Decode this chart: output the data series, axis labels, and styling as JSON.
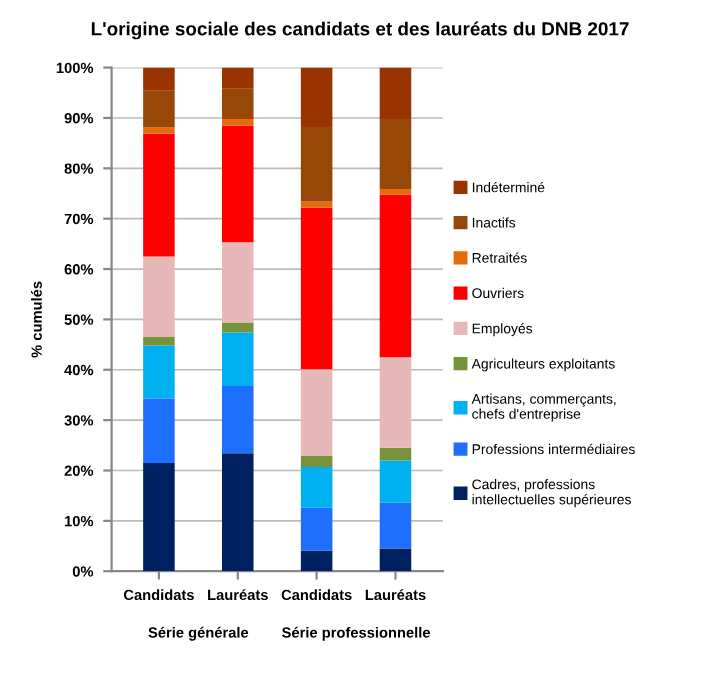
{
  "chart_data": {
    "type": "bar",
    "stacked": true,
    "title": "L'origine sociale des candidats et des lauréats du DNB 2017",
    "ylabel": "% cumulés",
    "categories": [
      "Candidats",
      "Lauréats",
      "Candidats",
      "Lauréats"
    ],
    "annotations": [
      "Série générale",
      "Série professionnelle"
    ],
    "series": [
      {
        "name": "Cadres, professions\nintellectuelles supérieures",
        "color": "#002060",
        "values": [
          21.5,
          23.4,
          4.1,
          4.5
        ]
      },
      {
        "name": "Professions intermédiaires",
        "color": "#1f6fff",
        "values": [
          12.8,
          13.4,
          8.5,
          9.1
        ]
      },
      {
        "name": "Artisans, commerçants,\nchefs d'entreprise",
        "color": "#00b0f0",
        "values": [
          10.5,
          10.6,
          8.1,
          8.4
        ]
      },
      {
        "name": "Agriculteurs exploitants",
        "color": "#77933c",
        "values": [
          1.7,
          2.0,
          2.2,
          2.5
        ]
      },
      {
        "name": "Employés",
        "color": "#e6b9b8",
        "values": [
          16.0,
          15.9,
          17.2,
          18.0
        ]
      },
      {
        "name": "Ouvriers",
        "color": "#ff0000",
        "values": [
          24.4,
          23.2,
          32.1,
          32.3
        ]
      },
      {
        "name": "Retraités",
        "color": "#e46c0a",
        "values": [
          1.2,
          1.3,
          1.2,
          1.1
        ]
      },
      {
        "name": "Inactifs",
        "color": "#974806",
        "values": [
          7.3,
          6.0,
          14.8,
          13.9
        ]
      },
      {
        "name": "Indéterminé",
        "color": "#993300",
        "values": [
          4.6,
          4.2,
          11.8,
          10.2
        ]
      }
    ],
    "ylim": [
      0,
      100
    ],
    "yticks": [
      {
        "value": 0,
        "label": "0%"
      },
      {
        "value": 10,
        "label": "10%"
      },
      {
        "value": 20,
        "label": "20%"
      },
      {
        "value": 30,
        "label": "30%"
      },
      {
        "value": 40,
        "label": "40%"
      },
      {
        "value": 50,
        "label": "50%"
      },
      {
        "value": 60,
        "label": "60%"
      },
      {
        "value": 70,
        "label": "70%"
      },
      {
        "value": 80,
        "label": "80%"
      },
      {
        "value": 90,
        "label": "90%"
      },
      {
        "value": 100,
        "label": "100%"
      }
    ],
    "grid": "y",
    "legend": "right"
  }
}
